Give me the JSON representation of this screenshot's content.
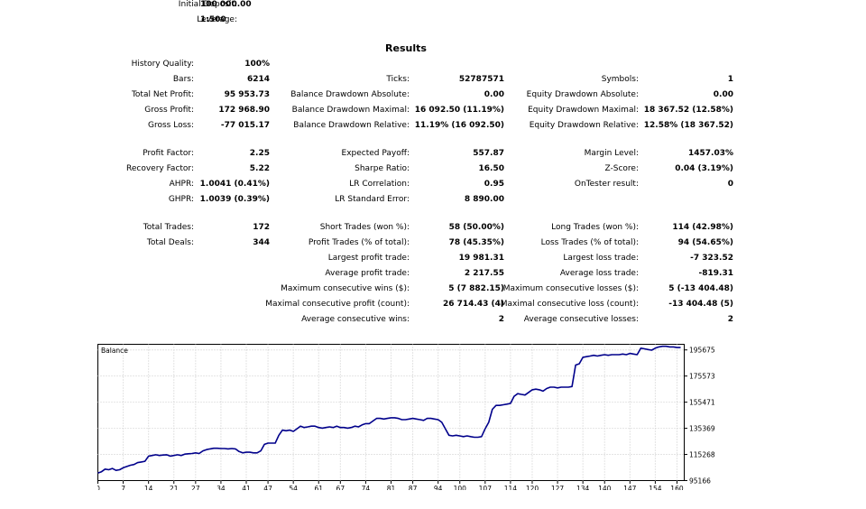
{
  "header": {
    "initial_deposit_label": "Initial Deposit:",
    "initial_deposit_value": "100 000.00",
    "leverage_label": "Leverage:",
    "leverage_value": "1:500"
  },
  "results_title": "Results",
  "stats": {
    "col1": [
      {
        "label": "History Quality:",
        "value": "100%"
      },
      {
        "label": "Bars:",
        "value": "6214"
      },
      {
        "label": "Total Net Profit:",
        "value": "95 953.73"
      },
      {
        "label": "Gross Profit:",
        "value": "172 968.90"
      },
      {
        "label": "Gross Loss:",
        "value": "-77 015.17"
      },
      {
        "label": "Profit Factor:",
        "value": "2.25"
      },
      {
        "label": "Recovery Factor:",
        "value": "5.22"
      },
      {
        "label": "AHPR:",
        "value": "1.0041 (0.41%)"
      },
      {
        "label": "GHPR:",
        "value": "1.0039 (0.39%)"
      },
      {
        "label": "Total Trades:",
        "value": "172"
      },
      {
        "label": "Total Deals:",
        "value": "344"
      }
    ],
    "col2": [
      {
        "label": "Ticks:",
        "value": "52787571"
      },
      {
        "label": "Balance Drawdown Absolute:",
        "value": "0.00"
      },
      {
        "label": "Balance Drawdown Maximal:",
        "value": "16 092.50 (11.19%)"
      },
      {
        "label": "Balance Drawdown Relative:",
        "value": "11.19% (16 092.50)"
      },
      {
        "label": "Expected Payoff:",
        "value": "557.87"
      },
      {
        "label": "Sharpe Ratio:",
        "value": "16.50"
      },
      {
        "label": "LR Correlation:",
        "value": "0.95"
      },
      {
        "label": "LR Standard Error:",
        "value": "8 890.00"
      },
      {
        "label": "Short Trades (won %):",
        "value": "58 (50.00%)"
      },
      {
        "label": "Profit Trades (% of total):",
        "value": "78 (45.35%)"
      },
      {
        "label": "Largest profit trade:",
        "value": "19 981.31"
      },
      {
        "label": "Average profit trade:",
        "value": "2 217.55"
      },
      {
        "label": "Maximum consecutive wins ($):",
        "value": "5 (7 882.15)"
      },
      {
        "label": "Maximal consecutive profit (count):",
        "value": "26 714.43 (4)"
      },
      {
        "label": "Average consecutive wins:",
        "value": "2"
      }
    ],
    "col3": [
      {
        "label": "Symbols:",
        "value": "1"
      },
      {
        "label": "Equity Drawdown Absolute:",
        "value": "0.00"
      },
      {
        "label": "Equity Drawdown Maximal:",
        "value": "18 367.52 (12.58%)"
      },
      {
        "label": "Equity Drawdown Relative:",
        "value": "12.58% (18 367.52)"
      },
      {
        "label": "Margin Level:",
        "value": "1457.03%"
      },
      {
        "label": "Z-Score:",
        "value": "0.04 (3.19%)"
      },
      {
        "label": "OnTester result:",
        "value": "0"
      },
      {
        "label": "Long Trades (won %):",
        "value": "114 (42.98%)"
      },
      {
        "label": "Loss Trades (% of total):",
        "value": "94 (54.65%)"
      },
      {
        "label": "Largest loss trade:",
        "value": "-7 323.52"
      },
      {
        "label": "Average loss trade:",
        "value": "-819.31"
      },
      {
        "label": "Maximum consecutive losses ($):",
        "value": "5 (-13 404.48)"
      },
      {
        "label": "Maximal consecutive loss (count):",
        "value": "-13 404.48 (5)"
      },
      {
        "label": "Average consecutive losses:",
        "value": "2"
      }
    ]
  },
  "chart_data": {
    "type": "line",
    "title": "Balance",
    "xlabel": "",
    "ylabel": "",
    "xlim": [
      0,
      162
    ],
    "ylim": [
      95166,
      200000
    ],
    "x_ticks": [
      0,
      7,
      14,
      21,
      27,
      34,
      41,
      47,
      54,
      61,
      67,
      74,
      81,
      87,
      94,
      100,
      107,
      114,
      120,
      127,
      134,
      140,
      147,
      154,
      160
    ],
    "y_ticks": [
      95166,
      115268,
      135369,
      155471,
      175573,
      195675
    ],
    "grid": true,
    "line_color": "#00008b",
    "series": [
      {
        "x": [
          0,
          1,
          2,
          3,
          4,
          5,
          6,
          7,
          8,
          9,
          10,
          11,
          12,
          13,
          14,
          15,
          16,
          17,
          18,
          19,
          20,
          21,
          22,
          23,
          24,
          25,
          26,
          27,
          28,
          29,
          30,
          31,
          32,
          33,
          34,
          35,
          36,
          37,
          38,
          39,
          40,
          41,
          42,
          43,
          44,
          45,
          46,
          47,
          48,
          49,
          50,
          51,
          52,
          53,
          54,
          55,
          56,
          57,
          58,
          59,
          60,
          61,
          62,
          63,
          64,
          65,
          66,
          67,
          68,
          69,
          70,
          71,
          72,
          73,
          74,
          75,
          76,
          77,
          78,
          79,
          80,
          81,
          82,
          83,
          84,
          85,
          86,
          87,
          88,
          89,
          90,
          91,
          92,
          93,
          94,
          95,
          96,
          97,
          98,
          99,
          100,
          101,
          102,
          103,
          104,
          105,
          106,
          107,
          108,
          109,
          110,
          111,
          112,
          113,
          114,
          115,
          116,
          117,
          118,
          119,
          120,
          121,
          122,
          123,
          124,
          125,
          126,
          127,
          128,
          129,
          130,
          131,
          132,
          133,
          134,
          135,
          136,
          137,
          138,
          139,
          140,
          141,
          142,
          143,
          144,
          145,
          146,
          147,
          148,
          149,
          150,
          151,
          152,
          153,
          154,
          155,
          156,
          157,
          158,
          159,
          160,
          161
        ],
        "values": [
          101000,
          102000,
          104000,
          103500,
          104500,
          103000,
          103500,
          105000,
          106000,
          107000,
          107500,
          109000,
          109500,
          110000,
          114000,
          114500,
          115000,
          114500,
          114800,
          115000,
          114000,
          114500,
          115000,
          114500,
          115500,
          115800,
          116000,
          116500,
          116000,
          118000,
          119000,
          119500,
          120000,
          120000,
          119800,
          119800,
          119500,
          119800,
          119500,
          117500,
          116500,
          117000,
          117000,
          116500,
          116500,
          118000,
          123000,
          124000,
          124000,
          124000,
          130000,
          134000,
          133500,
          134000,
          133000,
          135000,
          137000,
          136000,
          136500,
          137000,
          137000,
          136000,
          135500,
          136000,
          136500,
          136000,
          137000,
          136000,
          136000,
          135500,
          136000,
          137000,
          136500,
          138000,
          139000,
          139000,
          141000,
          143000,
          143000,
          142500,
          143000,
          143500,
          143500,
          143000,
          142000,
          142000,
          142500,
          143000,
          142500,
          142000,
          141500,
          143000,
          143000,
          142500,
          142000,
          140000,
          135000,
          130000,
          129500,
          130000,
          129500,
          129000,
          129500,
          129000,
          128500,
          128500,
          129000,
          135000,
          140000,
          150000,
          153000,
          153000,
          153500,
          154000,
          154500,
          160000,
          162000,
          161500,
          161000,
          163000,
          165000,
          165500,
          165000,
          164000,
          166000,
          167000,
          167000,
          166500,
          167000,
          167000,
          167000,
          167500,
          184000,
          185000,
          190000,
          190500,
          191000,
          191500,
          191000,
          191500,
          192000,
          191500,
          192000,
          192000,
          192000,
          192500,
          192000,
          193000,
          192500,
          192000,
          197000,
          196500,
          196000,
          195500,
          197000,
          198000,
          198500,
          198500,
          198000,
          198000,
          197500,
          197500
        ]
      }
    ]
  }
}
